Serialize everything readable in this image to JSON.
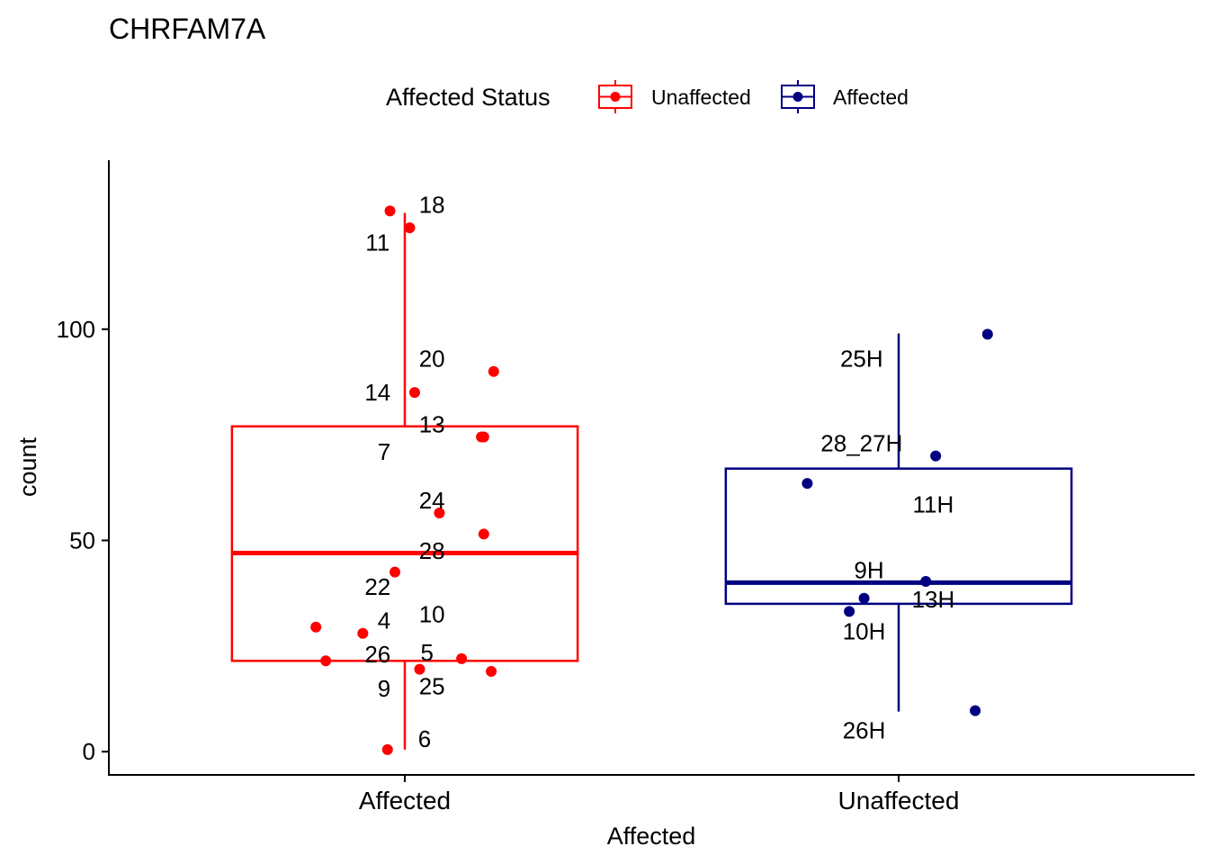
{
  "chart_data": {
    "type": "box",
    "title": "CHRFAM7A",
    "xlabel": "Affected",
    "ylabel": "count",
    "ylim": [
      -5.5,
      140
    ],
    "yticks": [
      0,
      50,
      100
    ],
    "categories": [
      "Affected",
      "Unaffected"
    ],
    "legend": {
      "title": "Affected Status",
      "position": "top",
      "entries": [
        {
          "label": "Unaffected",
          "color": "#ff0000"
        },
        {
          "label": "Affected",
          "color": "#000080"
        }
      ]
    },
    "boxes": [
      {
        "category": "Affected",
        "color": "#ff0000",
        "q1": 21.5,
        "median": 47,
        "q3": 77,
        "whisker_low": 0.5,
        "whisker_high": 127.5
      },
      {
        "category": "Unaffected",
        "color": "#000080",
        "q1": 35,
        "median": 40,
        "q3": 67,
        "whisker_low": 9.5,
        "whisker_high": 99
      }
    ],
    "points": [
      {
        "category": "Affected",
        "label": "18",
        "jitter": -0.03,
        "y": 128,
        "lx": 0.055,
        "ly": 129.5
      },
      {
        "category": "Affected",
        "label": "11",
        "jitter": 0.01,
        "y": 124,
        "lx": -0.055,
        "ly": 120.5
      },
      {
        "category": "Affected",
        "label": "20",
        "jitter": 0.18,
        "y": 90,
        "lx": 0.055,
        "ly": 93
      },
      {
        "category": "Affected",
        "label": "14",
        "jitter": 0.02,
        "y": 85,
        "lx": -0.055,
        "ly": 85
      },
      {
        "category": "Affected",
        "label": "13",
        "jitter": 0.155,
        "y": 74.5,
        "lx": 0.055,
        "ly": 77.5
      },
      {
        "category": "Affected",
        "label": "7",
        "jitter": 0.16,
        "y": 74.5,
        "lx": -0.042,
        "ly": 71
      },
      {
        "category": "Affected",
        "label": "24",
        "jitter": 0.07,
        "y": 56.5,
        "lx": 0.055,
        "ly": 59.5
      },
      {
        "category": "Affected",
        "label": "28",
        "jitter": 0.16,
        "y": 51.5,
        "lx": 0.055,
        "ly": 47.5
      },
      {
        "category": "Affected",
        "label": "22",
        "jitter": -0.02,
        "y": 42.5,
        "lx": -0.055,
        "ly": 39
      },
      {
        "category": "Affected",
        "label": "10",
        "jitter": -0.18,
        "y": 29.5,
        "lx": 0.055,
        "ly": 32.5
      },
      {
        "category": "Affected",
        "label": "4",
        "jitter": -0.085,
        "y": 28,
        "lx": -0.042,
        "ly": 31
      },
      {
        "category": "Affected",
        "label": "5",
        "jitter": 0.115,
        "y": 22,
        "lx": 0.045,
        "ly": 23.5
      },
      {
        "category": "Affected",
        "label": "26",
        "jitter": -0.16,
        "y": 21.5,
        "lx": -0.055,
        "ly": 23
      },
      {
        "category": "Affected",
        "label": "25",
        "jitter": 0.03,
        "y": 19.5,
        "lx": 0.055,
        "ly": 15.5
      },
      {
        "category": "Affected",
        "label": "9",
        "jitter": 0.175,
        "y": 19,
        "lx": -0.042,
        "ly": 15
      },
      {
        "category": "Affected",
        "label": "6",
        "jitter": -0.035,
        "y": 0.5,
        "lx": 0.04,
        "ly": 3
      },
      {
        "category": "Unaffected",
        "label": "25H",
        "jitter": 0.18,
        "y": 98.8,
        "lx": -0.075,
        "ly": 93
      },
      {
        "category": "Unaffected",
        "label": "28_27H",
        "jitter": 0.075,
        "y": 70,
        "lx": -0.075,
        "ly": 73
      },
      {
        "category": "Unaffected",
        "label": "11H",
        "jitter": -0.185,
        "y": 63.5,
        "lx": 0.07,
        "ly": 58.5
      },
      {
        "category": "Unaffected",
        "label": "9H",
        "jitter": 0.055,
        "y": 40.3,
        "lx": -0.06,
        "ly": 43
      },
      {
        "category": "Unaffected",
        "label": "13H",
        "jitter": -0.07,
        "y": 36.3,
        "lx": 0.07,
        "ly": 36
      },
      {
        "category": "Unaffected",
        "label": "10H",
        "jitter": -0.1,
        "y": 33.2,
        "lx": -0.07,
        "ly": 28.5
      },
      {
        "category": "Unaffected",
        "label": "26H",
        "jitter": 0.155,
        "y": 9.7,
        "lx": -0.07,
        "ly": 5
      }
    ]
  }
}
